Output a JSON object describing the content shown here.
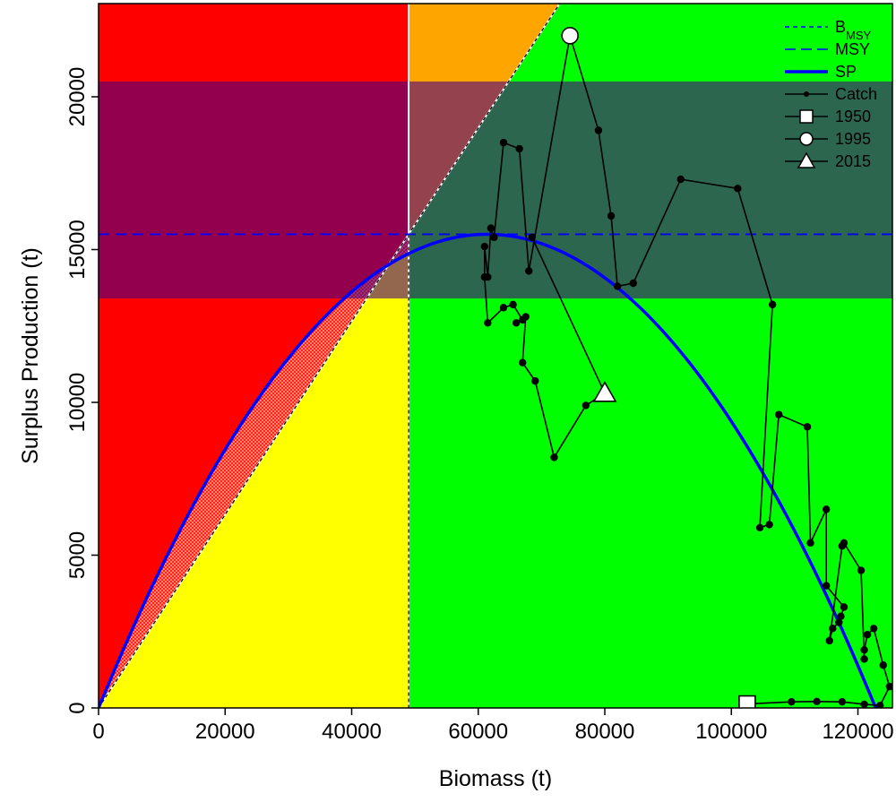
{
  "chart_data": {
    "type": "line",
    "xlabel": "Biomass (t)",
    "ylabel": "Surplus Production (t)",
    "xlim": [
      0,
      125000
    ],
    "ylim": [
      0,
      23000
    ],
    "x_ticks": [
      "0",
      "20000",
      "40000",
      "60000",
      "80000",
      "100000",
      "120000"
    ],
    "y_ticks": [
      "0",
      "5000",
      "10000",
      "15000",
      "20000"
    ],
    "reference": {
      "bmsy": 49000,
      "msy": 15500,
      "msy_band": [
        13400,
        20500
      ],
      "k": 122800
    },
    "regions": {
      "overfished_overfishing": "#ff0000",
      "overfished_no_overfishing": "#ffff00",
      "healthy_overfishing": "#ffa500",
      "healthy": "#00ff00",
      "msy_band_overlay": "#4b0082",
      "hatch": "#ffb6c1"
    },
    "series": [
      {
        "name": "Catch",
        "color": "#000000",
        "points": [
          [
            102500,
            130
          ],
          [
            109500,
            200
          ],
          [
            113500,
            210
          ],
          [
            117500,
            200
          ],
          [
            121000,
            120
          ],
          [
            123500,
            80
          ],
          [
            125000,
            700
          ],
          [
            124000,
            1400
          ],
          [
            122500,
            2600
          ],
          [
            121500,
            2400
          ],
          [
            121000,
            1900
          ],
          [
            121000,
            1600
          ],
          [
            120500,
            4500
          ],
          [
            117800,
            5400
          ],
          [
            117500,
            5300
          ],
          [
            115500,
            2200
          ],
          [
            116000,
            2600
          ],
          [
            117000,
            2800
          ],
          [
            117300,
            3000
          ],
          [
            117800,
            3300
          ],
          [
            115000,
            4000
          ],
          [
            115000,
            6500
          ],
          [
            112500,
            5400
          ],
          [
            112000,
            9200
          ],
          [
            107500,
            9600
          ],
          [
            106000,
            6000
          ],
          [
            104500,
            5900
          ],
          [
            106500,
            13200
          ],
          [
            101000,
            17000
          ],
          [
            92000,
            17300
          ],
          [
            84500,
            13900
          ],
          [
            82000,
            13800
          ],
          [
            81000,
            16100
          ],
          [
            79000,
            18900
          ],
          [
            74500,
            22000
          ],
          [
            68000,
            14300
          ],
          [
            66500,
            18300
          ],
          [
            64000,
            18500
          ],
          [
            62500,
            15400
          ],
          [
            62000,
            15700
          ],
          [
            61500,
            14100
          ],
          [
            61000,
            15100
          ],
          [
            61000,
            14100
          ],
          [
            61500,
            12600
          ],
          [
            64000,
            13100
          ],
          [
            65500,
            13200
          ],
          [
            67000,
            12700
          ],
          [
            66000,
            12600
          ],
          [
            67500,
            12800
          ],
          [
            67000,
            11300
          ],
          [
            69000,
            10700
          ],
          [
            72000,
            8200
          ],
          [
            77000,
            9900
          ],
          [
            80000,
            10300
          ],
          [
            68500,
            15400
          ]
        ]
      },
      {
        "name": "SP",
        "color": "#0000ff"
      }
    ],
    "markers": [
      {
        "name": "1950",
        "shape": "square",
        "x": 102500,
        "y": 130
      },
      {
        "name": "1995",
        "shape": "circle",
        "x": 74500,
        "y": 22000
      },
      {
        "name": "2015",
        "shape": "triangle",
        "x": 80000,
        "y": 10300
      }
    ],
    "legend": {
      "position": "top-right",
      "items": [
        {
          "label": "B",
          "sub": "MSY",
          "style": "short-dash"
        },
        {
          "label": "MSY",
          "sub": "",
          "style": "long-dash"
        },
        {
          "label": "SP",
          "sub": "",
          "style": "solid-thick"
        },
        {
          "label": "Catch",
          "sub": "",
          "style": "line-dot"
        },
        {
          "label": "1950",
          "sub": "",
          "style": "square"
        },
        {
          "label": "1995",
          "sub": "",
          "style": "circle"
        },
        {
          "label": "2015",
          "sub": "",
          "style": "triangle"
        }
      ]
    }
  }
}
